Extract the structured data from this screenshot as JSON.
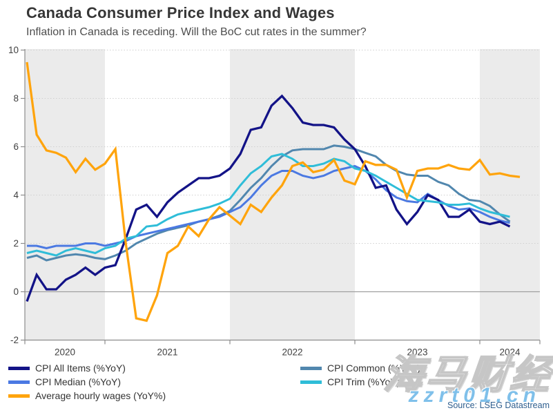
{
  "header": {
    "title": "Canada Consumer Price Index and Wages",
    "subtitle": "Inflation in Canada is receding. Will the BoC cut rates in the summer?"
  },
  "source": "Source: LSEG Datastream",
  "watermark": {
    "line1": "海马财经",
    "line2": "zzrt01.cn"
  },
  "chart_data": {
    "type": "line",
    "title": "Canada Consumer Price Index and Wages",
    "x_unit": "month",
    "x_start": "2020-05",
    "x_end": "2024-05",
    "x_tick_labels": [
      "2020",
      "2021",
      "2022",
      "2023",
      "2024"
    ],
    "y_ticks": [
      -2,
      0,
      2,
      4,
      6,
      8,
      10
    ],
    "ylim": [
      -2,
      10
    ],
    "grid": "dotted horizontal, zero line solid, alternating year shading",
    "legend_position": "bottom, two columns",
    "colors": {
      "cpi_all_items": "#131387",
      "cpi_median": "#4b79e2",
      "wages": "#ffa40d",
      "cpi_common": "#5187ae",
      "cpi_trim": "#2fbdd8",
      "band_gray": "#ebebeb",
      "gridline": "#cfcfcf",
      "zero_line": "#9e9e9e",
      "axis": "#8c8c8c",
      "tick_text": "#404040"
    },
    "series": [
      {
        "name": "CPI All Items (%YoY)",
        "slug": "cpi-all-items",
        "color": "#131387",
        "start_month": 0,
        "values": [
          -0.4,
          0.7,
          0.1,
          0.1,
          0.5,
          0.7,
          1.0,
          0.7,
          1.0,
          1.1,
          2.2,
          3.4,
          3.6,
          3.1,
          3.7,
          4.1,
          4.4,
          4.7,
          4.7,
          4.8,
          5.1,
          5.7,
          6.7,
          6.8,
          7.7,
          8.1,
          7.6,
          7.0,
          6.9,
          6.9,
          6.8,
          6.3,
          5.9,
          5.2,
          4.3,
          4.4,
          3.4,
          2.8,
          3.3,
          4.0,
          3.8,
          3.1,
          3.1,
          3.4,
          2.9,
          2.8,
          2.9,
          2.7
        ]
      },
      {
        "name": "CPI Median (%YoY)",
        "slug": "cpi-median",
        "color": "#4b79e2",
        "start_month": 0,
        "values": [
          1.9,
          1.9,
          1.8,
          1.9,
          1.9,
          1.9,
          2.0,
          2.0,
          1.9,
          2.0,
          2.1,
          2.3,
          2.4,
          2.5,
          2.6,
          2.7,
          2.8,
          2.9,
          3.0,
          3.1,
          3.3,
          3.5,
          3.9,
          4.4,
          4.8,
          5.0,
          5.0,
          4.8,
          4.7,
          4.8,
          5.0,
          5.1,
          5.2,
          5.0,
          4.65,
          4.2,
          3.9,
          3.75,
          3.7,
          4.05,
          3.8,
          3.55,
          3.4,
          3.45,
          3.3,
          3.1,
          2.95,
          2.85
        ]
      },
      {
        "name": "Average hourly wages (YoY%)",
        "slug": "avg-hourly-wages",
        "color": "#ffa40d",
        "start_month": 0,
        "values": [
          9.5,
          6.5,
          5.85,
          5.75,
          5.55,
          4.95,
          5.5,
          5.05,
          5.3,
          5.9,
          2.0,
          -1.1,
          -1.2,
          -0.15,
          1.6,
          1.9,
          2.7,
          2.3,
          3.0,
          3.5,
          3.15,
          2.8,
          3.6,
          3.3,
          3.9,
          4.4,
          5.2,
          5.35,
          4.95,
          5.05,
          5.45,
          4.6,
          4.45,
          5.4,
          5.25,
          5.25,
          5.05,
          3.9,
          5.0,
          5.1,
          5.1,
          5.25,
          5.1,
          5.05,
          5.45,
          4.85,
          4.9,
          4.8,
          4.75
        ]
      },
      {
        "name": "CPI Common (%YoY)",
        "slug": "cpi-common",
        "color": "#5187ae",
        "start_month": 0,
        "values": [
          1.4,
          1.5,
          1.3,
          1.4,
          1.5,
          1.55,
          1.5,
          1.4,
          1.35,
          1.5,
          1.7,
          2.0,
          2.2,
          2.4,
          2.55,
          2.65,
          2.75,
          2.9,
          3.0,
          3.15,
          3.35,
          3.8,
          4.3,
          4.7,
          5.2,
          5.6,
          5.85,
          5.9,
          5.9,
          5.9,
          6.05,
          6.0,
          5.9,
          5.75,
          5.6,
          5.25,
          5.0,
          4.85,
          4.8,
          4.8,
          4.55,
          4.4,
          4.05,
          3.8,
          3.75,
          3.55,
          3.2,
          2.9
        ]
      },
      {
        "name": "CPI Trim (%YoY)",
        "slug": "cpi-trim",
        "color": "#2fbdd8",
        "start_month": 0,
        "values": [
          1.6,
          1.7,
          1.6,
          1.5,
          1.7,
          1.8,
          1.7,
          1.6,
          1.8,
          1.9,
          2.2,
          2.3,
          2.7,
          2.75,
          3.0,
          3.2,
          3.3,
          3.4,
          3.5,
          3.65,
          3.85,
          4.4,
          4.9,
          5.2,
          5.6,
          5.7,
          5.5,
          5.2,
          5.2,
          5.3,
          5.5,
          5.4,
          5.1,
          5.0,
          4.8,
          4.55,
          4.3,
          4.05,
          3.8,
          3.75,
          3.7,
          3.6,
          3.6,
          3.65,
          3.45,
          3.3,
          3.2,
          3.1
        ]
      }
    ],
    "legend_columns": [
      [
        0,
        1,
        2
      ],
      [
        3,
        4
      ]
    ]
  }
}
